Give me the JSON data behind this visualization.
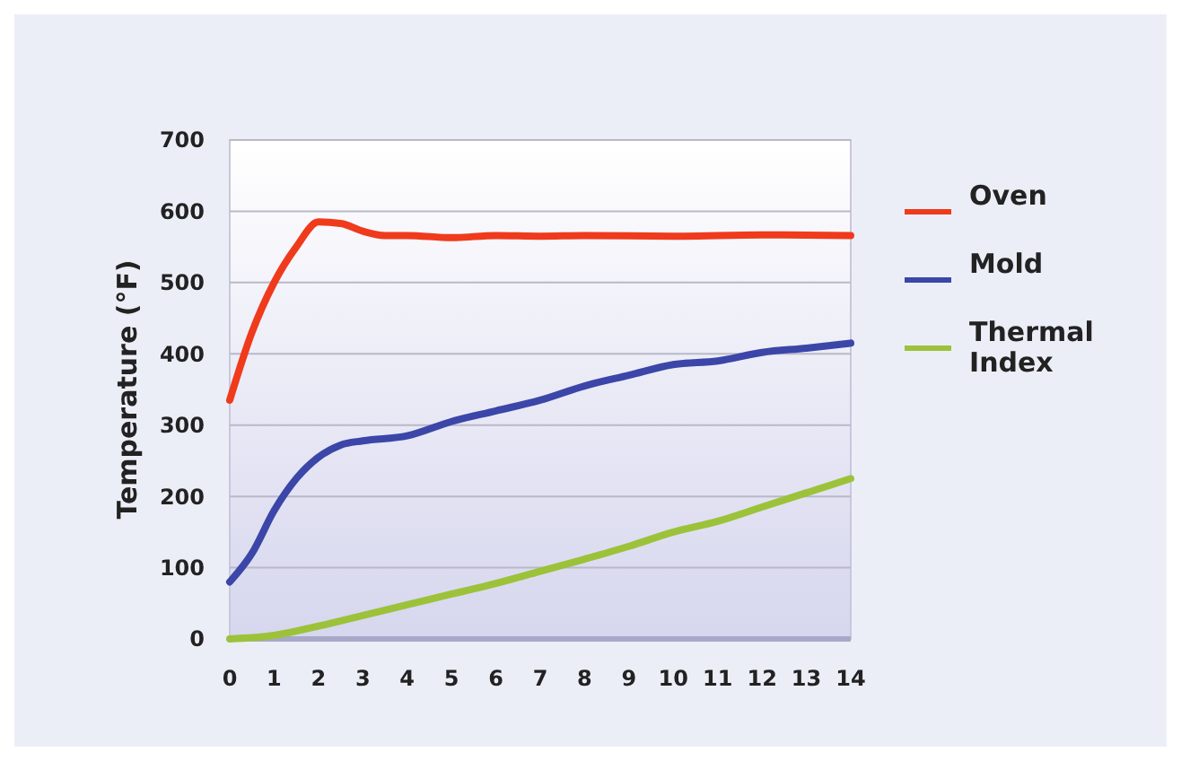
{
  "chart_data": {
    "type": "line",
    "ylabel": "Temperature (°F)",
    "xlim": [
      0,
      14
    ],
    "xticks": [
      0,
      1,
      2,
      3,
      4,
      5,
      6,
      7,
      8,
      9,
      10,
      11,
      12,
      13,
      14
    ],
    "ylim": [
      0,
      700
    ],
    "yticks": [
      0,
      100,
      200,
      300,
      400,
      500,
      600,
      700
    ],
    "grid": "y",
    "legend": "right",
    "line_style": "solid",
    "series": [
      {
        "name": "Oven",
        "color": "#f03a1c",
        "x": [
          0,
          0.5,
          1,
          1.5,
          2,
          2.5,
          3,
          3.5,
          4,
          5,
          6,
          7,
          8,
          10,
          12,
          14
        ],
        "values": [
          335,
          430,
          500,
          550,
          585,
          583,
          572,
          566,
          566,
          563,
          566,
          565,
          566,
          565,
          567,
          566
        ]
      },
      {
        "name": "Mold",
        "color": "#3b46a8",
        "x": [
          0,
          0.5,
          1,
          1.5,
          2,
          2.5,
          3,
          4,
          5,
          6,
          7,
          8,
          9,
          10,
          11,
          12,
          13,
          14
        ],
        "values": [
          80,
          120,
          180,
          225,
          255,
          272,
          278,
          285,
          305,
          320,
          335,
          355,
          370,
          385,
          390,
          402,
          408,
          415
        ]
      },
      {
        "name": "Thermal Index",
        "color": "#9cc23a",
        "x": [
          0,
          1,
          2,
          3,
          4,
          5,
          6,
          7,
          8,
          9,
          10,
          11,
          12,
          13,
          14
        ],
        "values": [
          0,
          5,
          18,
          33,
          48,
          63,
          78,
          95,
          112,
          130,
          150,
          165,
          185,
          205,
          225
        ]
      }
    ]
  }
}
